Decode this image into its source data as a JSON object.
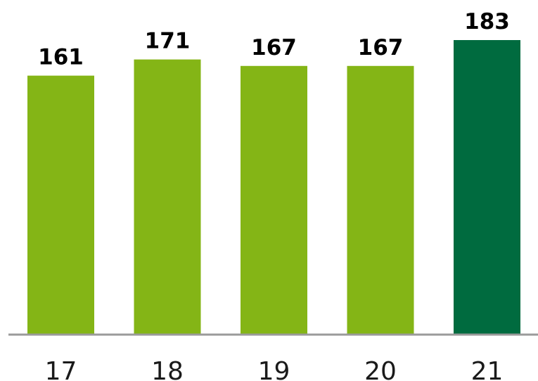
{
  "chart_data": {
    "type": "bar",
    "categories": [
      "17",
      "18",
      "19",
      "20",
      "21"
    ],
    "values": [
      161,
      171,
      167,
      167,
      183
    ],
    "data_labels": [
      "161",
      "171",
      "167",
      "167",
      "183"
    ],
    "title": "",
    "xlabel": "",
    "ylabel": "",
    "ylim": [
      0,
      190
    ],
    "grid": false,
    "legend": "none",
    "colors": {
      "default": "#84b516",
      "highlight": "#006b3f",
      "axis": "#9a9a9a"
    },
    "highlight_index": 4
  }
}
